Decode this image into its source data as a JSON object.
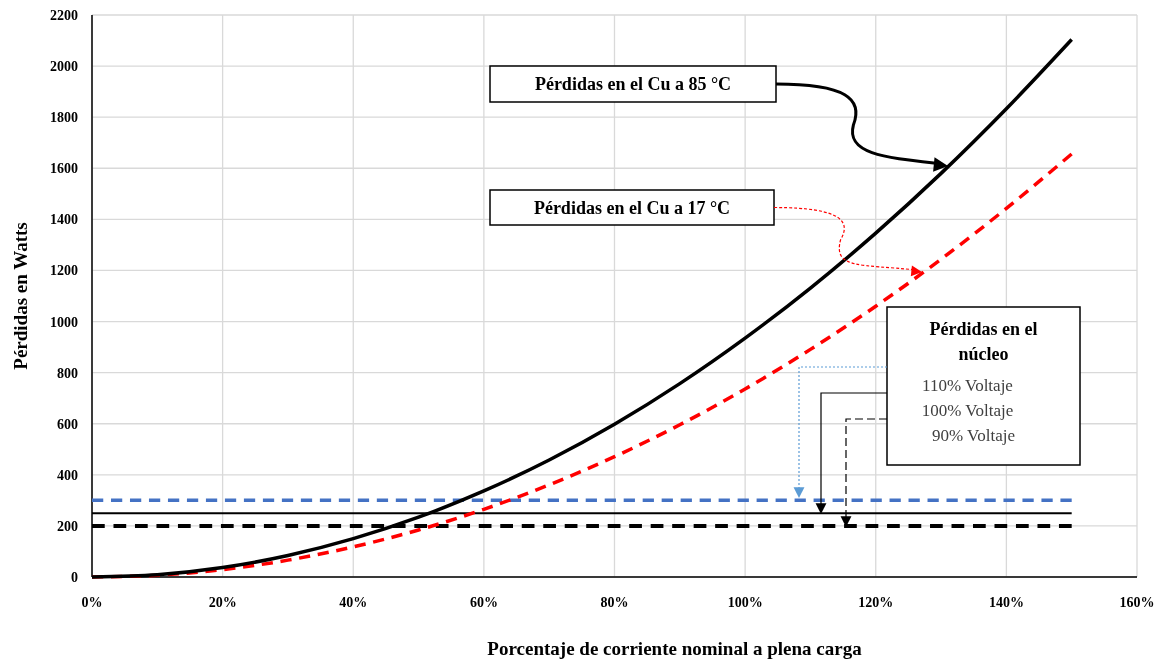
{
  "chart_data": {
    "type": "line",
    "xlabel": "Porcentaje de corriente nominal a plena carga",
    "ylabel": "Pérdidas en Watts",
    "x": [
      0,
      10,
      20,
      30,
      40,
      50,
      60,
      70,
      80,
      90,
      100,
      110,
      120,
      130,
      140,
      150
    ],
    "series": [
      {
        "color": "#000000",
        "line_style": "solid",
        "values": [
          0,
          9,
          37,
          84,
          150,
          234,
          337,
          458,
          598,
          757,
          935,
          1131,
          1346,
          1580,
          1833,
          2104
        ]
      },
      {
        "color": "#ff0000",
        "line_style": "dashed",
        "values": [
          0,
          7,
          29,
          66,
          118,
          184,
          265,
          361,
          471,
          596,
          736,
          891,
          1060,
          1244,
          1443,
          1656
        ]
      },
      {
        "color": "#4472c4",
        "line_style": "dashed",
        "values": [
          300,
          300,
          300,
          300,
          300,
          300,
          300,
          300,
          300,
          300,
          300,
          300,
          300,
          300,
          300,
          300
        ]
      },
      {
        "color": "#000000",
        "line_style": "solid",
        "values": [
          250,
          250,
          250,
          250,
          250,
          250,
          250,
          250,
          250,
          250,
          250,
          250,
          250,
          250,
          250,
          250
        ]
      },
      {
        "color": "#000000",
        "line_style": "dashed",
        "values": [
          200,
          200,
          200,
          200,
          200,
          200,
          200,
          200,
          200,
          200,
          200,
          200,
          200,
          200,
          200,
          200
        ]
      }
    ],
    "xlim": [
      0,
      160
    ],
    "xticks": [
      {
        "value": 0,
        "label": "0%"
      },
      {
        "value": 20,
        "label": "20%"
      },
      {
        "value": 40,
        "label": "40%"
      },
      {
        "value": 60,
        "label": "60%"
      },
      {
        "value": 80,
        "label": "80%"
      },
      {
        "value": 100,
        "label": "100%"
      },
      {
        "value": 120,
        "label": "120%"
      },
      {
        "value": 140,
        "label": "140%"
      },
      {
        "value": 160,
        "label": "160%"
      }
    ],
    "ylim": [
      0,
      2200
    ],
    "yticks": [
      0,
      200,
      400,
      600,
      800,
      1000,
      1200,
      1400,
      1600,
      1800,
      2000,
      2200
    ],
    "grid": true,
    "marker": "none",
    "annotations": [
      "Pérdidas en el Cu a 85 °C",
      "Pérdidas en el Cu a 17 °C",
      "110% Voltaje",
      "100% Voltaje",
      "90% Voltaje",
      "Pérdidas en el núcleo"
    ]
  }
}
